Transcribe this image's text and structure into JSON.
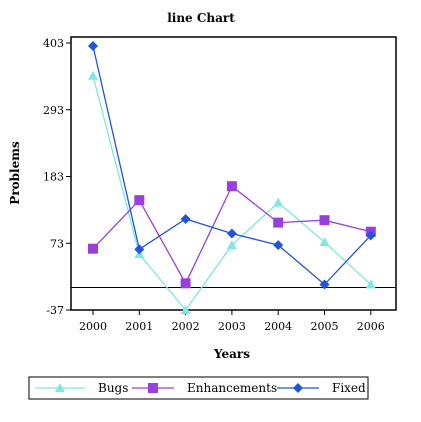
{
  "chart_data": {
    "type": "line",
    "title": "line Chart",
    "xlabel": "Years",
    "ylabel": "Problems",
    "categories": [
      "2000",
      "2001",
      "2002",
      "2003",
      "2004",
      "2005",
      "2006"
    ],
    "y_ticks": [
      -37,
      73,
      183,
      293,
      403
    ],
    "ylim": [
      -37,
      403
    ],
    "reference_line": 0,
    "series": [
      {
        "name": "Bugs",
        "marker": "triangle",
        "color": "#7fe8e0",
        "values": [
          349,
          55,
          -37,
          70,
          140,
          75,
          5
        ]
      },
      {
        "name": "Enhancements",
        "marker": "square",
        "color": "#9b3fdc",
        "values": [
          64,
          144,
          7,
          167,
          107,
          111,
          92
        ]
      },
      {
        "name": "Fixed",
        "marker": "diamond",
        "color": "#2255dd",
        "values": [
          398,
          63,
          113,
          89,
          70,
          5,
          86
        ]
      }
    ],
    "legend_position": "bottom",
    "grid": false
  }
}
